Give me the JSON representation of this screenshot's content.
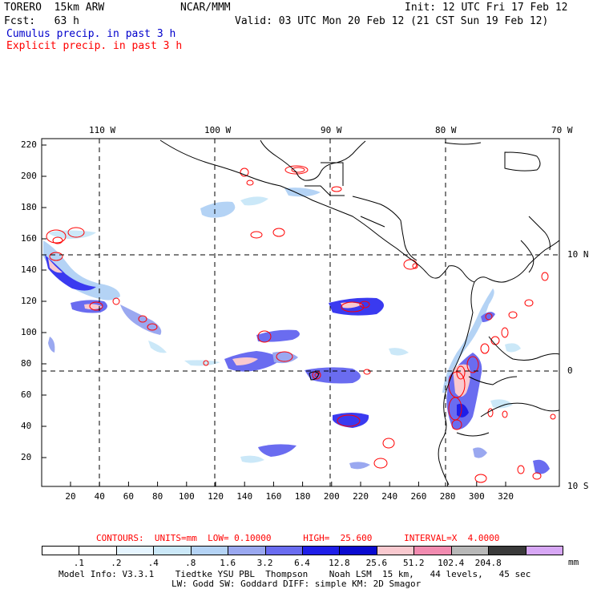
{
  "header": {
    "title_left": "TORERO  15km ARW",
    "org": "NCAR/MMM",
    "init": "Init: 12 UTC Fri 17 Feb 12",
    "fcst": "Fcst:   63 h",
    "valid": "Valid: 03 UTC Mon 20 Feb 12 (21 CST Sun 19 Feb 12)",
    "legend_cumulus": "Cumulus precip. in past 3 h",
    "legend_explicit": "Explicit precip. in past 3 h"
  },
  "colors": {
    "cumulus_text": "#0000cc",
    "explicit_text": "#ff0000",
    "grid": "#000000",
    "coast": "#000000",
    "explicit_contour": "#ff0000"
  },
  "axes": {
    "top_lon_labels": [
      "110 W",
      "100 W",
      "90 W",
      "80 W",
      "70 W"
    ],
    "right_lat_labels": [
      "10 N",
      "0",
      "10 S"
    ],
    "left_y_ticks": [
      "220",
      "200",
      "180",
      "160",
      "140",
      "120",
      "100",
      "80",
      "60",
      "40",
      "20"
    ],
    "bottom_x_ticks": [
      "20",
      "40",
      "60",
      "80",
      "100",
      "120",
      "140",
      "160",
      "180",
      "200",
      "220",
      "240",
      "260",
      "280",
      "300",
      "320"
    ]
  },
  "contour_info": "CONTOURS:  UNITS=mm  LOW= 0.10000      HIGH=  25.600      INTERVAL=X  4.0000",
  "colorbar": {
    "labels": [
      ".1",
      ".2",
      ".4",
      ".8",
      "1.6",
      "3.2",
      "6.4",
      "12.8",
      "25.6",
      "51.2",
      "102.4",
      "204.8"
    ],
    "units": "mm",
    "colors": [
      "#ffffff",
      "#ffffff",
      "#e6f5ff",
      "#cbe8f8",
      "#b4d3f5",
      "#9aa8f0",
      "#6a6cf0",
      "#1f1ee8",
      "#0a0ad0",
      "#f9c9cf",
      "#f28bb0",
      "#b8b8b8",
      "#3a3a3a",
      "#d7a7f5"
    ]
  },
  "footer": {
    "line1": "Model Info: V3.3.1    Tiedtke YSU PBL  Thompson    Noah LSM  15 km,   44 levels,   45 sec",
    "line2": "LW: Godd SW: Goddard DIFF: simple KM: 2D Smagor"
  }
}
